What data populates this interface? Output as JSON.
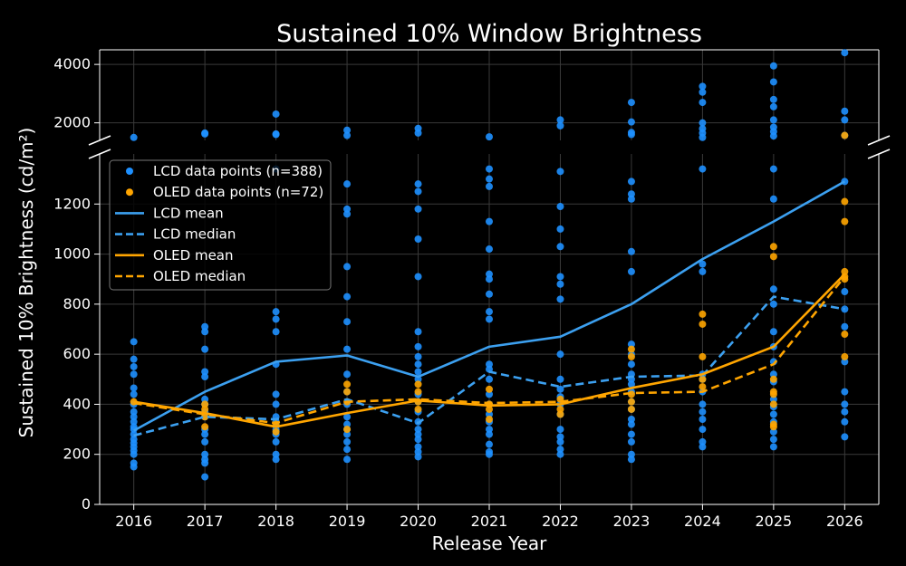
{
  "chart_data": {
    "type": "line",
    "title": "Sustained 10% Window Brightness",
    "xlabel": "Release Year",
    "ylabel": "Sustained 10% Brightness (cd/m²)",
    "x": [
      2016,
      2017,
      2018,
      2019,
      2020,
      2021,
      2022,
      2023,
      2024,
      2025,
      2026
    ],
    "x_ticks": [
      "2016",
      "2017",
      "2018",
      "2019",
      "2020",
      "2021",
      "2022",
      "2023",
      "2024",
      "2025",
      "2026"
    ],
    "y_axis_lower": {
      "range": [
        0,
        1400
      ],
      "ticks": [
        "0",
        "200",
        "400",
        "600",
        "800",
        "1000",
        "1200"
      ]
    },
    "y_axis_upper": {
      "range": [
        1400,
        4500
      ],
      "ticks": [
        "2000",
        "4000"
      ]
    },
    "broken_axis": true,
    "grid": true,
    "legend_position": "upper-left",
    "series": [
      {
        "name": "LCD data points (n=388)",
        "kind": "scatter",
        "color": "#1e90ff",
        "points": [
          [
            2016,
            150
          ],
          [
            2016,
            165
          ],
          [
            2016,
            200
          ],
          [
            2016,
            215
          ],
          [
            2016,
            230
          ],
          [
            2016,
            245
          ],
          [
            2016,
            260
          ],
          [
            2016,
            280
          ],
          [
            2016,
            300
          ],
          [
            2016,
            310
          ],
          [
            2016,
            330
          ],
          [
            2016,
            350
          ],
          [
            2016,
            370
          ],
          [
            2016,
            400
          ],
          [
            2016,
            440
          ],
          [
            2016,
            465
          ],
          [
            2016,
            520
          ],
          [
            2016,
            550
          ],
          [
            2016,
            580
          ],
          [
            2016,
            650
          ],
          [
            2016,
            1500
          ],
          [
            2017,
            110
          ],
          [
            2017,
            165
          ],
          [
            2017,
            180
          ],
          [
            2017,
            200
          ],
          [
            2017,
            250
          ],
          [
            2017,
            280
          ],
          [
            2017,
            300
          ],
          [
            2017,
            350
          ],
          [
            2017,
            370
          ],
          [
            2017,
            400
          ],
          [
            2017,
            420
          ],
          [
            2017,
            510
          ],
          [
            2017,
            530
          ],
          [
            2017,
            620
          ],
          [
            2017,
            690
          ],
          [
            2017,
            710
          ],
          [
            2017,
            1620
          ],
          [
            2017,
            1650
          ],
          [
            2018,
            180
          ],
          [
            2018,
            200
          ],
          [
            2018,
            250
          ],
          [
            2018,
            280
          ],
          [
            2018,
            300
          ],
          [
            2018,
            330
          ],
          [
            2018,
            350
          ],
          [
            2018,
            400
          ],
          [
            2018,
            440
          ],
          [
            2018,
            560
          ],
          [
            2018,
            690
          ],
          [
            2018,
            740
          ],
          [
            2018,
            770
          ],
          [
            2018,
            1340
          ],
          [
            2018,
            1600
          ],
          [
            2018,
            1620
          ],
          [
            2018,
            2300
          ],
          [
            2019,
            180
          ],
          [
            2019,
            220
          ],
          [
            2019,
            250
          ],
          [
            2019,
            280
          ],
          [
            2019,
            300
          ],
          [
            2019,
            320
          ],
          [
            2019,
            350
          ],
          [
            2019,
            400
          ],
          [
            2019,
            450
          ],
          [
            2019,
            520
          ],
          [
            2019,
            620
          ],
          [
            2019,
            730
          ],
          [
            2019,
            830
          ],
          [
            2019,
            950
          ],
          [
            2019,
            1160
          ],
          [
            2019,
            1180
          ],
          [
            2019,
            1280
          ],
          [
            2019,
            1570
          ],
          [
            2019,
            1750
          ],
          [
            2020,
            190
          ],
          [
            2020,
            210
          ],
          [
            2020,
            230
          ],
          [
            2020,
            260
          ],
          [
            2020,
            280
          ],
          [
            2020,
            300
          ],
          [
            2020,
            330
          ],
          [
            2020,
            370
          ],
          [
            2020,
            410
          ],
          [
            2020,
            440
          ],
          [
            2020,
            500
          ],
          [
            2020,
            530
          ],
          [
            2020,
            560
          ],
          [
            2020,
            590
          ],
          [
            2020,
            630
          ],
          [
            2020,
            690
          ],
          [
            2020,
            910
          ],
          [
            2020,
            1060
          ],
          [
            2020,
            1180
          ],
          [
            2020,
            1250
          ],
          [
            2020,
            1280
          ],
          [
            2020,
            1650
          ],
          [
            2020,
            1810
          ],
          [
            2021,
            200
          ],
          [
            2021,
            210
          ],
          [
            2021,
            240
          ],
          [
            2021,
            280
          ],
          [
            2021,
            300
          ],
          [
            2021,
            330
          ],
          [
            2021,
            360
          ],
          [
            2021,
            400
          ],
          [
            2021,
            440
          ],
          [
            2021,
            500
          ],
          [
            2021,
            540
          ],
          [
            2021,
            560
          ],
          [
            2021,
            740
          ],
          [
            2021,
            770
          ],
          [
            2021,
            840
          ],
          [
            2021,
            900
          ],
          [
            2021,
            920
          ],
          [
            2021,
            1020
          ],
          [
            2021,
            1130
          ],
          [
            2021,
            1270
          ],
          [
            2021,
            1300
          ],
          [
            2021,
            1340
          ],
          [
            2021,
            1520
          ],
          [
            2022,
            200
          ],
          [
            2022,
            220
          ],
          [
            2022,
            250
          ],
          [
            2022,
            270
          ],
          [
            2022,
            300
          ],
          [
            2022,
            360
          ],
          [
            2022,
            400
          ],
          [
            2022,
            430
          ],
          [
            2022,
            460
          ],
          [
            2022,
            500
          ],
          [
            2022,
            600
          ],
          [
            2022,
            820
          ],
          [
            2022,
            880
          ],
          [
            2022,
            910
          ],
          [
            2022,
            1030
          ],
          [
            2022,
            1100
          ],
          [
            2022,
            1190
          ],
          [
            2022,
            1330
          ],
          [
            2022,
            1900
          ],
          [
            2022,
            2100
          ],
          [
            2023,
            180
          ],
          [
            2023,
            200
          ],
          [
            2023,
            250
          ],
          [
            2023,
            280
          ],
          [
            2023,
            320
          ],
          [
            2023,
            340
          ],
          [
            2023,
            380
          ],
          [
            2023,
            410
          ],
          [
            2023,
            450
          ],
          [
            2023,
            480
          ],
          [
            2023,
            500
          ],
          [
            2023,
            520
          ],
          [
            2023,
            560
          ],
          [
            2023,
            600
          ],
          [
            2023,
            640
          ],
          [
            2023,
            930
          ],
          [
            2023,
            1010
          ],
          [
            2023,
            1220
          ],
          [
            2023,
            1240
          ],
          [
            2023,
            1290
          ],
          [
            2023,
            1600
          ],
          [
            2023,
            1670
          ],
          [
            2023,
            2030
          ],
          [
            2023,
            2700
          ],
          [
            2024,
            230
          ],
          [
            2024,
            250
          ],
          [
            2024,
            300
          ],
          [
            2024,
            340
          ],
          [
            2024,
            370
          ],
          [
            2024,
            400
          ],
          [
            2024,
            450
          ],
          [
            2024,
            500
          ],
          [
            2024,
            520
          ],
          [
            2024,
            930
          ],
          [
            2024,
            960
          ],
          [
            2024,
            1340
          ],
          [
            2024,
            1500
          ],
          [
            2024,
            1650
          ],
          [
            2024,
            1800
          ],
          [
            2024,
            2000
          ],
          [
            2024,
            2700
          ],
          [
            2024,
            3050
          ],
          [
            2024,
            3250
          ],
          [
            2025,
            230
          ],
          [
            2025,
            260
          ],
          [
            2025,
            290
          ],
          [
            2025,
            330
          ],
          [
            2025,
            360
          ],
          [
            2025,
            390
          ],
          [
            2025,
            420
          ],
          [
            2025,
            490
          ],
          [
            2025,
            520
          ],
          [
            2025,
            570
          ],
          [
            2025,
            630
          ],
          [
            2025,
            690
          ],
          [
            2025,
            800
          ],
          [
            2025,
            860
          ],
          [
            2025,
            1220
          ],
          [
            2025,
            1340
          ],
          [
            2025,
            1550
          ],
          [
            2025,
            1700
          ],
          [
            2025,
            1850
          ],
          [
            2025,
            2100
          ],
          [
            2025,
            2550
          ],
          [
            2025,
            2800
          ],
          [
            2025,
            3400
          ],
          [
            2025,
            3950
          ],
          [
            2026,
            270
          ],
          [
            2026,
            330
          ],
          [
            2026,
            370
          ],
          [
            2026,
            400
          ],
          [
            2026,
            450
          ],
          [
            2026,
            570
          ],
          [
            2026,
            710
          ],
          [
            2026,
            780
          ],
          [
            2026,
            850
          ],
          [
            2026,
            1290
          ],
          [
            2026,
            1570
          ],
          [
            2026,
            2100
          ],
          [
            2026,
            2400
          ],
          [
            2026,
            4400
          ]
        ]
      },
      {
        "name": "OLED data points (n=72)",
        "kind": "scatter",
        "color": "#ffa500",
        "points": [
          [
            2016,
            410
          ],
          [
            2017,
            310
          ],
          [
            2017,
            350
          ],
          [
            2017,
            380
          ],
          [
            2017,
            400
          ],
          [
            2018,
            290
          ],
          [
            2018,
            320
          ],
          [
            2019,
            410
          ],
          [
            2019,
            450
          ],
          [
            2019,
            480
          ],
          [
            2019,
            300
          ],
          [
            2020,
            380
          ],
          [
            2020,
            410
          ],
          [
            2020,
            450
          ],
          [
            2020,
            480
          ],
          [
            2021,
            340
          ],
          [
            2021,
            380
          ],
          [
            2021,
            400
          ],
          [
            2021,
            460
          ],
          [
            2022,
            360
          ],
          [
            2022,
            380
          ],
          [
            2022,
            420
          ],
          [
            2023,
            380
          ],
          [
            2023,
            410
          ],
          [
            2023,
            440
          ],
          [
            2023,
            590
          ],
          [
            2023,
            620
          ],
          [
            2024,
            590
          ],
          [
            2024,
            720
          ],
          [
            2024,
            760
          ],
          [
            2024,
            500
          ],
          [
            2024,
            470
          ],
          [
            2025,
            310
          ],
          [
            2025,
            320
          ],
          [
            2025,
            400
          ],
          [
            2025,
            440
          ],
          [
            2025,
            450
          ],
          [
            2025,
            500
          ],
          [
            2025,
            990
          ],
          [
            2025,
            1030
          ],
          [
            2026,
            590
          ],
          [
            2026,
            680
          ],
          [
            2026,
            900
          ],
          [
            2026,
            910
          ],
          [
            2026,
            930
          ],
          [
            2026,
            1130
          ],
          [
            2026,
            1210
          ],
          [
            2026,
            1570
          ]
        ]
      },
      {
        "name": "LCD mean",
        "kind": "line",
        "dash": "solid",
        "color": "#3ca0f0",
        "values": [
          295,
          450,
          570,
          595,
          510,
          630,
          670,
          800,
          980,
          1130,
          1290
        ]
      },
      {
        "name": "LCD median",
        "kind": "line",
        "dash": "dashed",
        "color": "#3ca0f0",
        "values": [
          275,
          350,
          340,
          420,
          325,
          530,
          470,
          510,
          515,
          830,
          780
        ]
      },
      {
        "name": "OLED mean",
        "kind": "line",
        "dash": "solid",
        "color": "#ffa500",
        "values": [
          410,
          365,
          310,
          365,
          415,
          395,
          400,
          465,
          520,
          630,
          920
        ]
      },
      {
        "name": "OLED median",
        "kind": "line",
        "dash": "dashed",
        "color": "#ffa500",
        "values": [
          405,
          360,
          325,
          410,
          420,
          405,
          410,
          445,
          450,
          560,
          910
        ]
      }
    ]
  }
}
